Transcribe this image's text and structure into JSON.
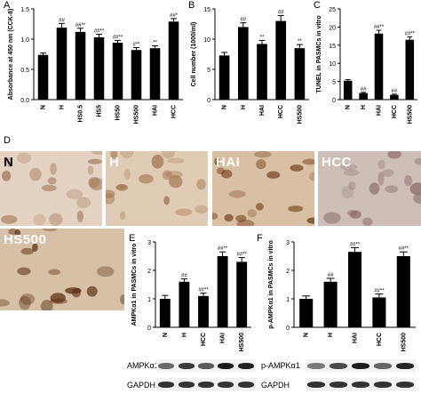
{
  "panel_letters": {
    "A": "A",
    "B": "B",
    "C": "C",
    "D": "D",
    "E": "E",
    "F": "F"
  },
  "chart_data": [
    {
      "id": "A",
      "type": "bar",
      "categories": [
        "N",
        "H",
        "HS0.5",
        "HS5",
        "HS50",
        "HS500",
        "HAI",
        "HCC"
      ],
      "values": [
        0.74,
        1.19,
        1.12,
        1.03,
        0.94,
        0.82,
        0.85,
        1.29
      ],
      "errors": [
        0.03,
        0.07,
        0.06,
        0.05,
        0.04,
        0.04,
        0.04,
        0.05
      ],
      "annotations": [
        "",
        "##",
        "##**",
        "##**",
        "##**",
        "#**",
        "**",
        "##*"
      ],
      "ylabel": "Absorbance at 450 nm (CCK-8)",
      "ylim": [
        0,
        1.5
      ],
      "yticks": [
        0.0,
        0.5,
        1.0,
        1.5
      ],
      "ytick_labels": [
        "0.0",
        "0.5",
        "1.0",
        "1.5"
      ]
    },
    {
      "id": "B",
      "type": "bar",
      "categories": [
        "N",
        "H",
        "HAI",
        "HCC",
        "HS500"
      ],
      "values": [
        7.3,
        12.0,
        9.2,
        13.0,
        8.5
      ],
      "errors": [
        0.5,
        0.7,
        0.6,
        0.9,
        0.6
      ],
      "annotations": [
        "",
        "##",
        "**",
        "##",
        "**"
      ],
      "ylabel": "Cell number (1000/ml)",
      "ylim": [
        0,
        15
      ],
      "yticks": [
        0,
        5,
        10,
        15
      ],
      "ytick_labels": [
        "0",
        "5",
        "10",
        "15"
      ]
    },
    {
      "id": "C",
      "type": "bar",
      "categories": [
        "N",
        "H",
        "HAI",
        "HCC",
        "HS500"
      ],
      "values": [
        5.2,
        1.8,
        18.2,
        1.3,
        16.5
      ],
      "errors": [
        0.3,
        0.2,
        0.9,
        0.2,
        0.8
      ],
      "annotations": [
        "",
        "##",
        "##**",
        "##",
        "##**"
      ],
      "ylabel": "TUNEL in PASMCs in vitro",
      "ylim": [
        0,
        25
      ],
      "yticks": [
        0,
        5,
        10,
        15,
        20,
        25
      ],
      "ytick_labels": [
        "0",
        "5",
        "10",
        "15",
        "20",
        "25"
      ]
    },
    {
      "id": "E",
      "type": "bar",
      "categories": [
        "N",
        "H",
        "HCC",
        "HAI",
        "HS500"
      ],
      "values": [
        1.0,
        1.6,
        1.1,
        2.5,
        2.3
      ],
      "errors": [
        0.12,
        0.1,
        0.1,
        0.15,
        0.15
      ],
      "annotations": [
        "",
        "##",
        "##**",
        "##**",
        "##**"
      ],
      "ylabel": "AMPKα1 in PASMCs in vitro",
      "ylim": [
        0,
        3
      ],
      "yticks": [
        0,
        1,
        2,
        3
      ],
      "ytick_labels": [
        "0",
        "1",
        "2",
        "3"
      ]
    },
    {
      "id": "F",
      "type": "bar",
      "categories": [
        "N",
        "H",
        "HAI",
        "HCC",
        "HS500"
      ],
      "values": [
        1.0,
        1.6,
        2.65,
        1.05,
        2.5
      ],
      "errors": [
        0.1,
        0.12,
        0.15,
        0.12,
        0.15
      ],
      "annotations": [
        "",
        "##",
        "##**",
        "##**",
        "##**"
      ],
      "ylabel": "p-AMPKα1 in PASMCs in vitro",
      "ylim": [
        0,
        3
      ],
      "yticks": [
        0,
        1,
        2,
        3
      ],
      "ytick_labels": [
        "0",
        "1",
        "2",
        "3"
      ]
    }
  ],
  "micrographs": [
    {
      "label": "N",
      "label_color": "#000000",
      "bg": "#e4d2c2",
      "spots": "#a27a58"
    },
    {
      "label": "H",
      "label_color": "#ffffff",
      "bg": "#e0cbb4",
      "spots": "#9a6a45"
    },
    {
      "label": "HAI",
      "label_color": "#ffffff",
      "bg": "#d9c0a3",
      "spots": "#6e3a16"
    },
    {
      "label": "HCC",
      "label_color": "#ffffff",
      "bg": "#cdbfb8",
      "spots": "#8a6a6a"
    },
    {
      "label": "HS500",
      "label_color": "#ffffff",
      "bg": "#d6c0a6",
      "spots": "#5a2e12"
    }
  ],
  "blots": {
    "E": {
      "rows": [
        "AMPKα1",
        "GAPDH"
      ]
    },
    "F": {
      "rows": [
        "p-AMPKα1",
        "GAPDH"
      ]
    }
  },
  "colors": {
    "bar": "#000000",
    "axis": "#000000"
  }
}
